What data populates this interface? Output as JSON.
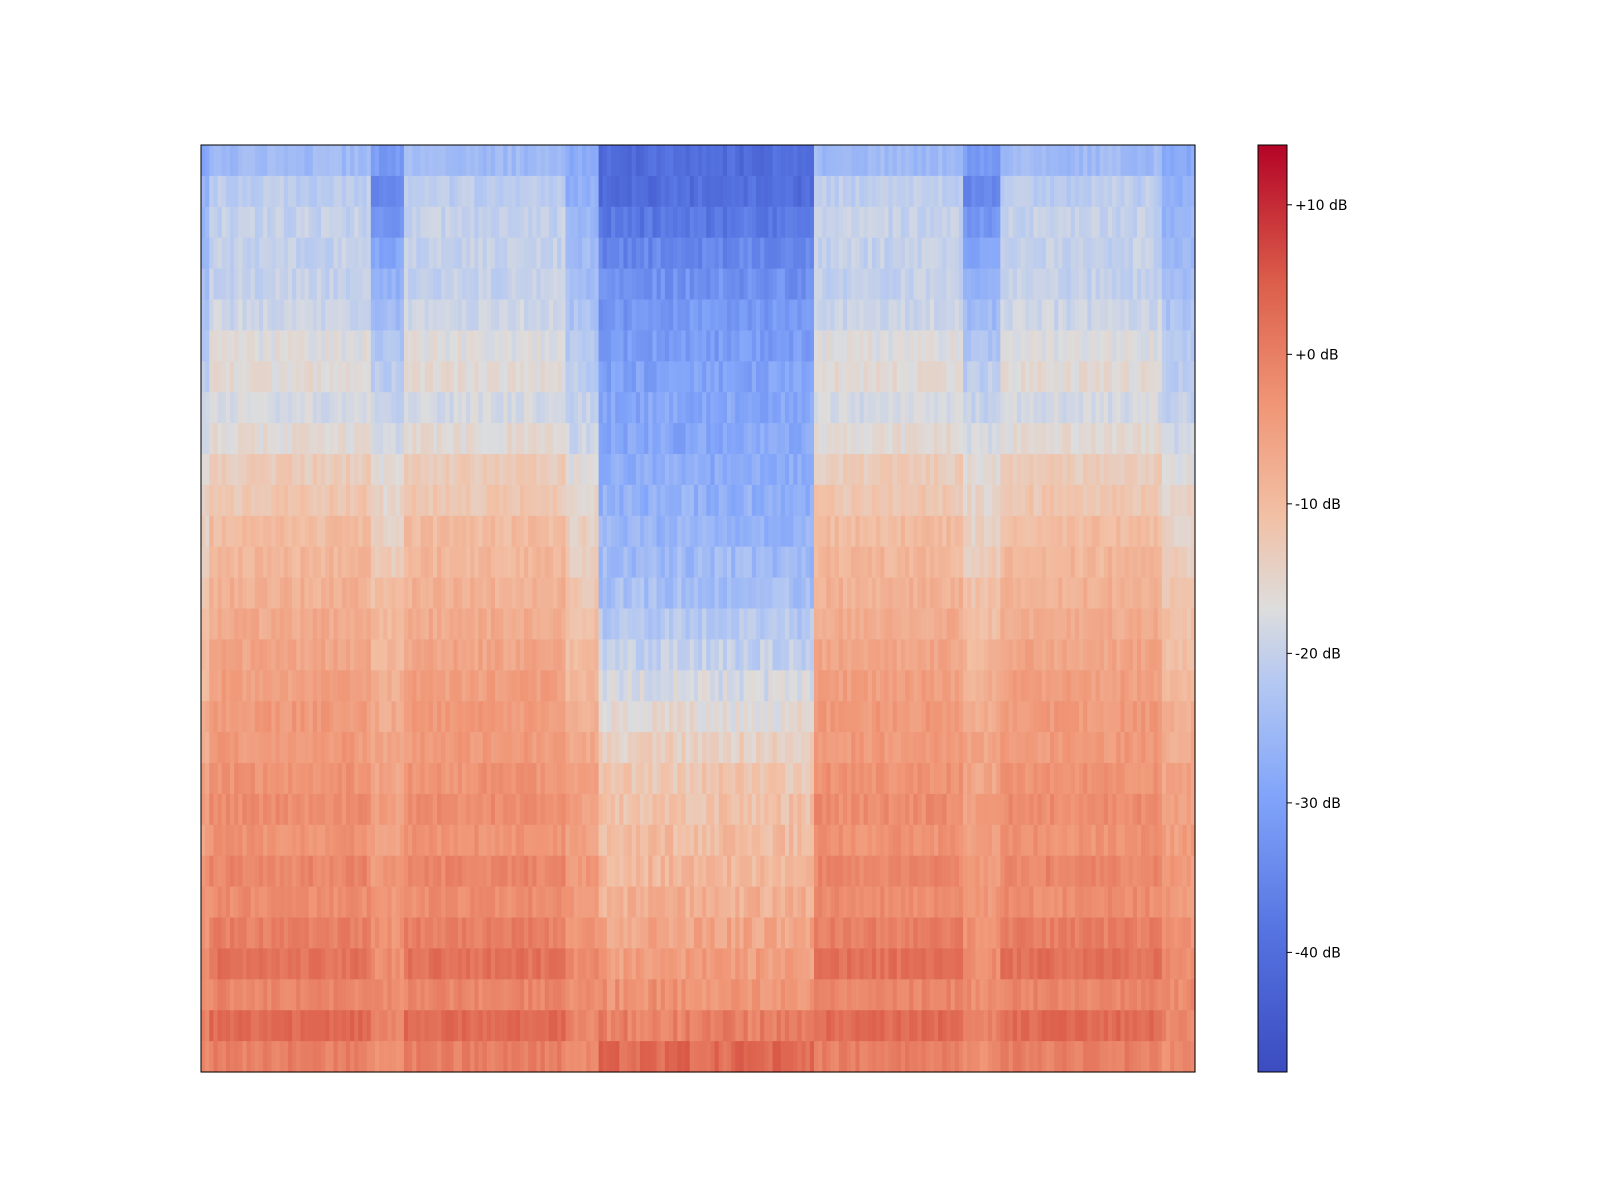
{
  "chart_data": {
    "type": "heatmap",
    "title": "",
    "xlabel": "",
    "ylabel": "",
    "colormap": "coolwarm",
    "colorbar": {
      "range_db": [
        -48,
        14
      ],
      "ticks": [
        {
          "value": 10,
          "label": "+10 dB"
        },
        {
          "value": 0,
          "label": "+0 dB"
        },
        {
          "value": -10,
          "label": "-10 dB"
        },
        {
          "value": -20,
          "label": "-20 dB"
        },
        {
          "value": -30,
          "label": "-30 dB"
        },
        {
          "value": -40,
          "label": "-40 dB"
        }
      ]
    },
    "time_segments": [
      {
        "start": 0.0,
        "end": 0.008,
        "type": "transition"
      },
      {
        "start": 0.008,
        "end": 0.17,
        "type": "tonal"
      },
      {
        "start": 0.17,
        "end": 0.205,
        "type": "gap"
      },
      {
        "start": 0.205,
        "end": 0.365,
        "type": "tonal"
      },
      {
        "start": 0.365,
        "end": 0.398,
        "type": "transition"
      },
      {
        "start": 0.398,
        "end": 0.615,
        "type": "noisy"
      },
      {
        "start": 0.615,
        "end": 0.765,
        "type": "tonal"
      },
      {
        "start": 0.765,
        "end": 0.805,
        "type": "gap"
      },
      {
        "start": 0.805,
        "end": 0.965,
        "type": "tonal"
      },
      {
        "start": 0.965,
        "end": 1.0,
        "type": "transition"
      }
    ],
    "frequency_profiles_db": {
      "tonal": [
        -25,
        -21,
        -20,
        -20,
        -20,
        -19,
        -17,
        -16,
        -18,
        -16,
        -13,
        -12,
        -10,
        -9,
        -8,
        -7,
        -6,
        -5,
        -4,
        -4,
        -3,
        -2,
        -3,
        -1,
        -2,
        0,
        2,
        -1,
        3,
        0
      ],
      "gap": [
        -31,
        -35,
        -32,
        -29,
        -27,
        -25,
        -23,
        -21,
        -20,
        -18,
        -16,
        -15,
        -14,
        -13,
        -11,
        -10,
        -9,
        -8,
        -7,
        -6,
        -6,
        -5,
        -5,
        -4,
        -4,
        -3,
        -2,
        -2,
        -1,
        -2
      ],
      "noisy": [
        -40,
        -40,
        -38,
        -35,
        -33,
        -32,
        -31,
        -30,
        -29,
        -29,
        -28,
        -27,
        -26,
        -25,
        -24,
        -22,
        -20,
        -18,
        -16,
        -14,
        -12,
        -11,
        -10,
        -9,
        -8,
        -6,
        -5,
        -3,
        0,
        3
      ],
      "transition": [
        -28,
        -27,
        -26,
        -25,
        -24,
        -23,
        -22,
        -21,
        -20,
        -19,
        -17,
        -15,
        -14,
        -13,
        -12,
        -11,
        -10,
        -9,
        -8,
        -7,
        -6,
        -5,
        -5,
        -4,
        -4,
        -3,
        -2,
        -2,
        -1,
        -2
      ]
    },
    "colors": {
      "low": "#3b4cc0",
      "mid": "#dddddd",
      "high": "#b40426"
    }
  }
}
